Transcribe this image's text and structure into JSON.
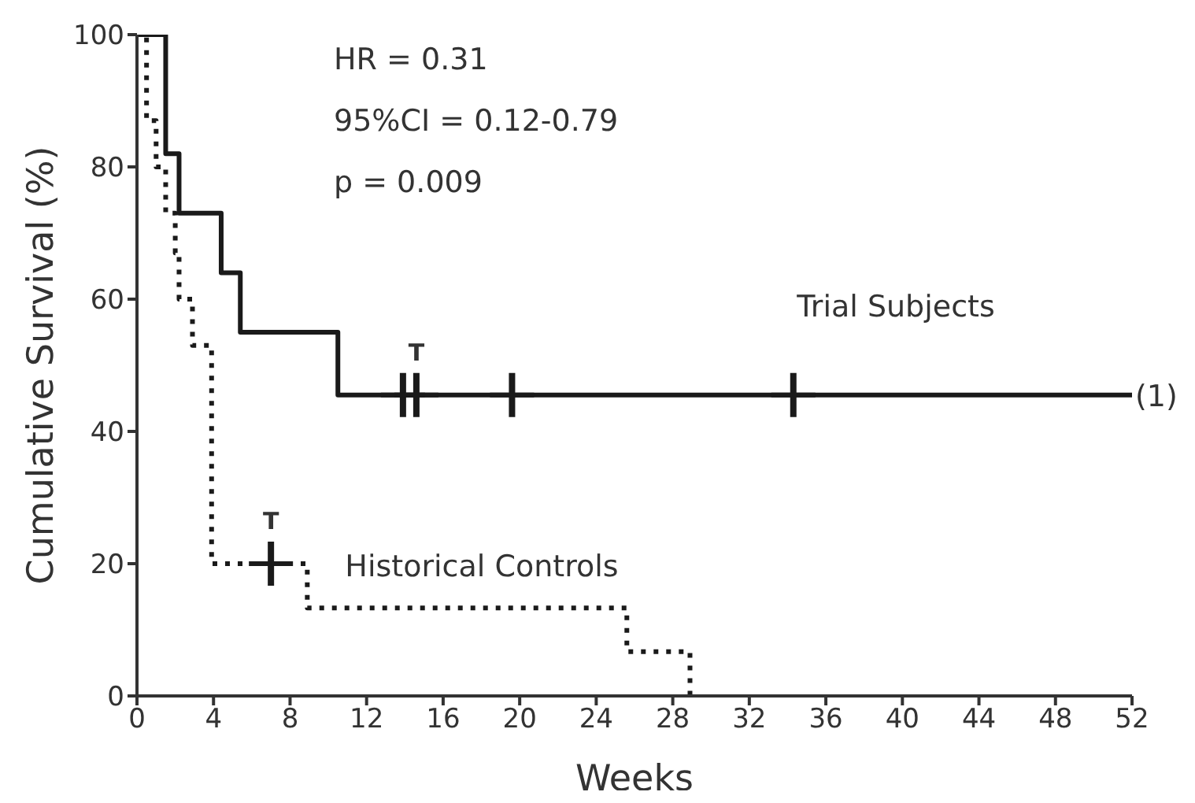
{
  "chart_data": {
    "type": "step",
    "xlabel": "Weeks",
    "ylabel": "Cumulative Survival (%)",
    "xlim": [
      0,
      52
    ],
    "xticks": [
      0,
      4,
      8,
      12,
      16,
      20,
      24,
      28,
      32,
      36,
      40,
      44,
      48,
      52
    ],
    "ylim": [
      0,
      100
    ],
    "yticks": [
      0,
      20,
      40,
      60,
      80,
      100
    ],
    "grid": false,
    "legend": false,
    "marker": "none",
    "series": [
      {
        "name": "Trial Subjects",
        "color": "#1a1a1a",
        "line_style": "solid",
        "x": [
          0,
          1.5,
          2.2,
          4.4,
          5.4,
          10.5,
          52
        ],
        "values": [
          100,
          82,
          73,
          64,
          55,
          45.5,
          45.5
        ]
      },
      {
        "name": "Historical Controls",
        "color": "#1a1a1a",
        "line_style": "dotted",
        "x": [
          0,
          0.5,
          1,
          1.5,
          2,
          2.2,
          2.9,
          3.9,
          8.9,
          25.6,
          28.9
        ],
        "values": [
          100,
          87,
          80,
          73,
          67,
          60,
          53,
          20,
          13.3,
          6.7,
          0
        ]
      },
      {
        "type": "scatter",
        "marker": "cross",
        "color": "#1a1a1a",
        "x": [
          13.9,
          14.6,
          19.6,
          34.3
        ],
        "values": [
          45.5,
          45.5,
          45.5,
          45.5
        ]
      },
      {
        "type": "scatter",
        "marker": "cross",
        "color": "#1a1a1a",
        "x": [
          7
        ],
        "values": [
          20
        ]
      }
    ],
    "annotations": [
      "HR = 0.31",
      "95%CI = 0.12-0.79",
      "p = 0.009",
      {
        "text": "T",
        "x": 14.6,
        "y": 45.5
      },
      {
        "text": "T",
        "x": 7,
        "y": 20
      },
      {
        "text": "(1)",
        "x": 52,
        "y": 45.5
      }
    ]
  }
}
